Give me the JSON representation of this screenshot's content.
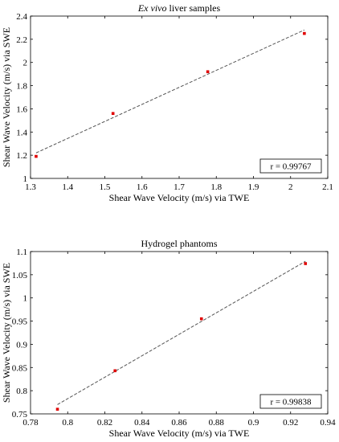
{
  "chart_data": [
    {
      "type": "scatter",
      "title_italic": "Ex vivo",
      "title_rest": " liver samples",
      "xlabel": "Shear Wave Velocity (m/s) via TWE",
      "ylabel": "Shear Wave Velocity (m/s) via SWE",
      "xlim": [
        1.3,
        2.1
      ],
      "ylim": [
        1.0,
        2.4
      ],
      "x_ticks": [
        "1.3",
        "1.4",
        "1.5",
        "1.6",
        "1.7",
        "1.8",
        "1.9",
        "2",
        "2.1"
      ],
      "y_ticks": [
        "1",
        "1.2",
        "1.4",
        "1.6",
        "1.8",
        "2",
        "2.2",
        "2.4"
      ],
      "points": [
        {
          "x": 1.315,
          "y": 1.19
        },
        {
          "x": 1.522,
          "y": 1.56
        },
        {
          "x": 1.777,
          "y": 1.92
        },
        {
          "x": 2.037,
          "y": 2.25
        }
      ],
      "fit_line": {
        "x": [
          1.315,
          2.037
        ],
        "y": [
          1.22,
          2.28
        ]
      },
      "annotation": "r = 0.99767",
      "grid": false,
      "box": true
    },
    {
      "type": "scatter",
      "title_italic": "",
      "title_rest": "Hydrogel phantoms",
      "xlabel": "Shear Wave Velocity (m/s) via TWE",
      "ylabel": "Shear Wave Velocity (m/s) via SWE",
      "xlim": [
        0.78,
        0.94
      ],
      "ylim": [
        0.75,
        1.1
      ],
      "x_ticks": [
        "0.78",
        "0.8",
        "0.82",
        "0.84",
        "0.86",
        "0.88",
        "0.9",
        "0.92",
        "0.94"
      ],
      "y_ticks": [
        "0.75",
        "0.8",
        "0.85",
        "0.9",
        "0.95",
        "1",
        "1.05",
        "1.1"
      ],
      "points": [
        {
          "x": 0.7945,
          "y": 0.76
        },
        {
          "x": 0.8255,
          "y": 0.843
        },
        {
          "x": 0.872,
          "y": 0.955
        },
        {
          "x": 0.928,
          "y": 1.074
        }
      ],
      "fit_line": {
        "x": [
          0.7945,
          0.928
        ],
        "y": [
          0.77,
          1.079
        ]
      },
      "annotation": "r = 0.99838",
      "grid": false,
      "box": true
    }
  ]
}
